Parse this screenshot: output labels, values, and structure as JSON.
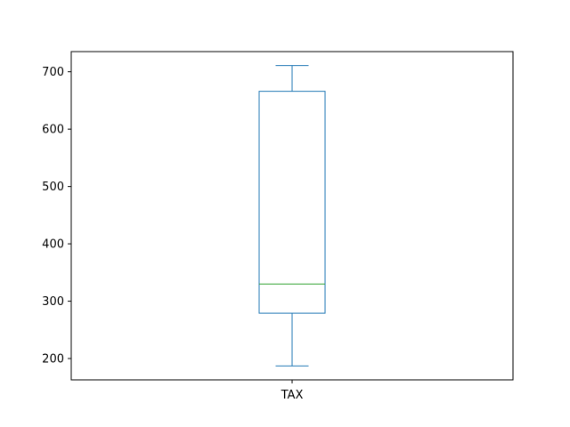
{
  "chart_data": {
    "type": "box",
    "categories": [
      "TAX"
    ],
    "series": [
      {
        "min": 187,
        "q1": 279,
        "median": 330,
        "q3": 666,
        "max": 711
      }
    ],
    "yticks": [
      200,
      300,
      400,
      500,
      600,
      700
    ],
    "ylim": [
      162.8,
      735.2
    ],
    "grid": false,
    "colors": {
      "box": "#1f77b4",
      "whisker": "#1f77b4",
      "median": "#2ca02c",
      "axis": "#000000"
    }
  }
}
